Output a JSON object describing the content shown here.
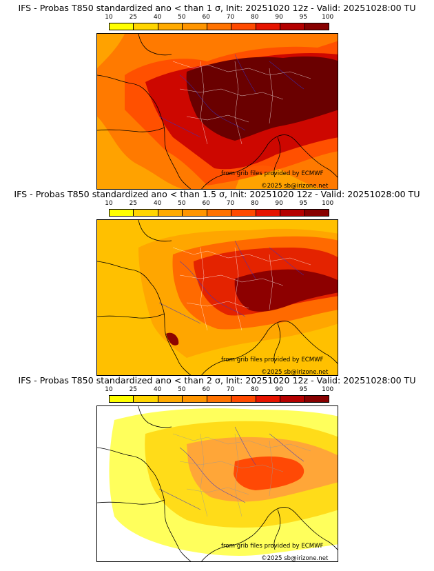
{
  "colorbar": {
    "levels": [
      "10",
      "25",
      "40",
      "50",
      "60",
      "70",
      "80",
      "90",
      "95",
      "100"
    ],
    "colors": [
      "#ffff00",
      "#ffd500",
      "#ffaa00",
      "#ff9500",
      "#ff7200",
      "#ff4a00",
      "#e61400",
      "#b40000",
      "#870000",
      "#5a0000"
    ]
  },
  "panels": [
    {
      "title": "IFS - Probas T850  standardized ano < than 1 σ, Init: 20251020 12z - Valid: 20251028:00 TU",
      "credit_grib": "from grib files provided by ECMWF",
      "credit_copyright": "©2025 sb@irizone.net",
      "background_color": "#ff7a00",
      "fields": [
        {
          "color": "#ffb300",
          "intensity": 0.35
        },
        {
          "color": "#ff4500",
          "intensity": 0.55
        },
        {
          "color": "#c80000",
          "intensity": 0.8
        },
        {
          "color": "#6a0000",
          "intensity": 1.0
        }
      ]
    },
    {
      "title": "IFS - Probas T850  standardized ano < than 1.5 σ, Init: 20251020 12z - Valid: 20251028:00 TU",
      "credit_grib": "from grib files provided by ECMWF",
      "credit_copyright": "©2025 sb@irizone.net",
      "background_color": "#ffc000",
      "fields": [
        {
          "color": "#ff9a00",
          "intensity": 0.35
        },
        {
          "color": "#ff5a00",
          "intensity": 0.55
        },
        {
          "color": "#e01a00",
          "intensity": 0.75
        },
        {
          "color": "#8a0000",
          "intensity": 0.95
        }
      ]
    },
    {
      "title": "IFS - Probas T850  standardized ano < than 2 σ, Init: 20251020 12z - Valid: 20251028:00 TU",
      "credit_grib": "from grib files provided by ECMWF",
      "credit_copyright": "©2025 sb@irizone.net",
      "background_color": "#ffffff",
      "fields": [
        {
          "color": "#ffff00",
          "intensity": 0.2
        },
        {
          "color": "#ffcf00",
          "intensity": 0.4
        },
        {
          "color": "#ff9a40",
          "intensity": 0.6
        },
        {
          "color": "#ff4000",
          "intensity": 0.8
        }
      ]
    }
  ]
}
